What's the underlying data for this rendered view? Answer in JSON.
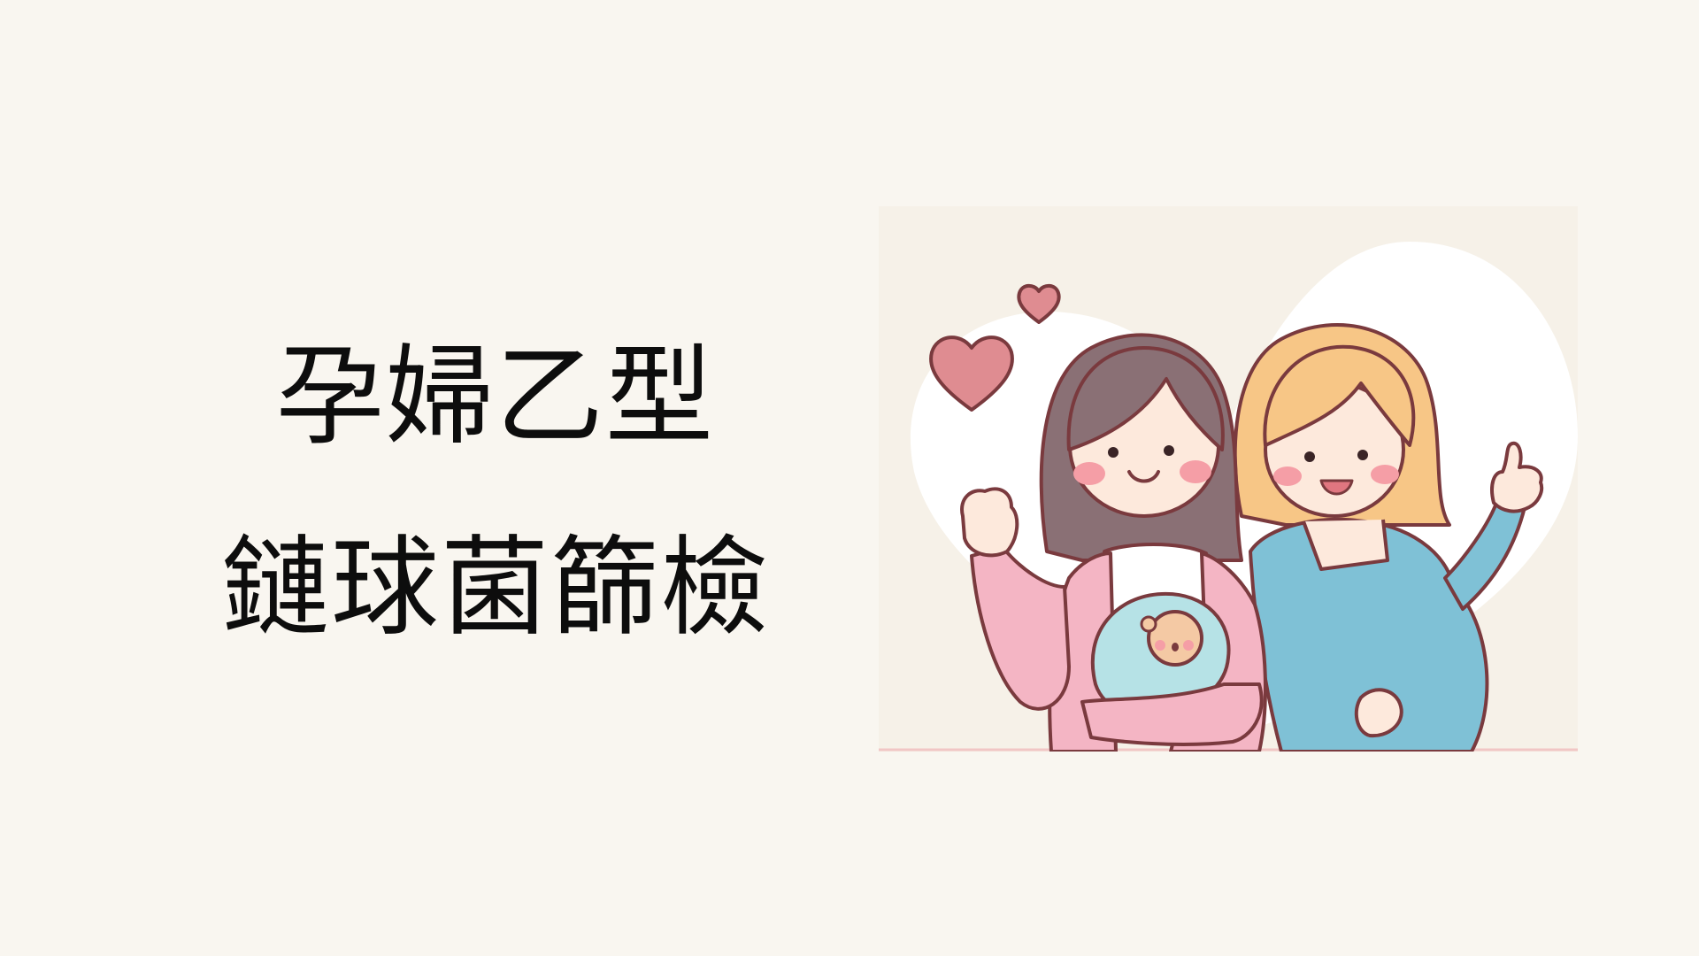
{
  "title": {
    "line1": "孕婦乙型",
    "line2": "鏈球菌篩檢"
  },
  "illustration": {
    "icon": "mothers-with-baby-illustration",
    "colors": {
      "background": "#f9f6f0",
      "panel": "#f6f1e8",
      "heart_white": "#ffffff",
      "heart_pink": "#df8c91",
      "outline": "#7a3a3e",
      "skin": "#fde9dc",
      "cheek": "#f59ea6",
      "hair_dark": "#8a7075",
      "hair_blonde": "#f7c686",
      "cardigan": "#f4b5c4",
      "dress": "#7fc1d6",
      "baby_blanket": "#b6e2e6"
    }
  }
}
